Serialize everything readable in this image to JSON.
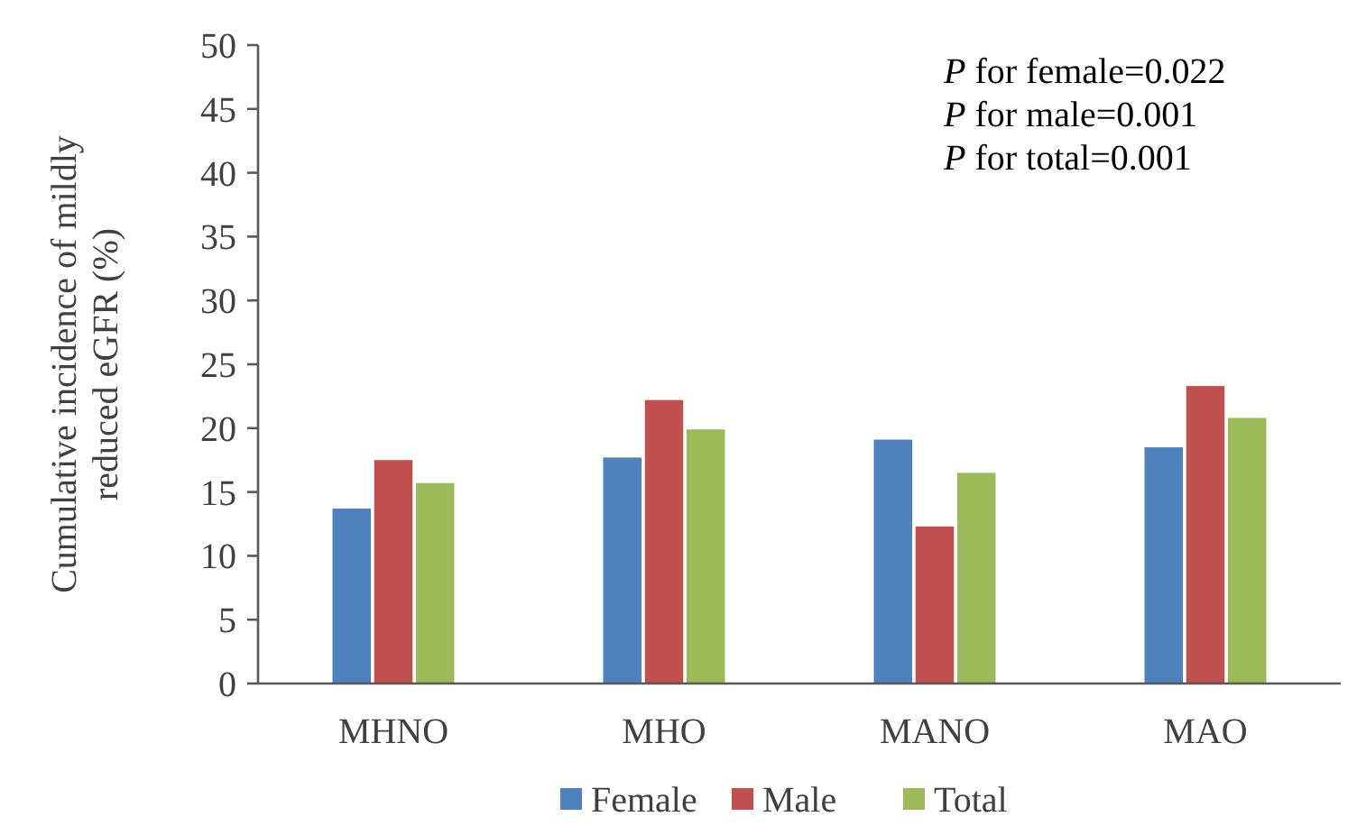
{
  "chart_data": {
    "type": "bar",
    "ylabel": "Cumulative incidence  of mildly reduced eGFR (%)",
    "categories": [
      "MHNO",
      "MHO",
      "MANO",
      "MAO"
    ],
    "series": [
      {
        "name": "Female",
        "color": "#4f81bd",
        "values": [
          13.7,
          17.7,
          19.1,
          18.5
        ]
      },
      {
        "name": "Male",
        "color": "#c0504d",
        "values": [
          17.5,
          22.2,
          12.3,
          23.3
        ]
      },
      {
        "name": "Total",
        "color": "#9bbb59",
        "values": [
          15.7,
          19.9,
          16.5,
          20.8
        ]
      }
    ],
    "ylim": [
      0,
      50
    ],
    "yticks": [
      0,
      5,
      10,
      15,
      20,
      25,
      30,
      35,
      40,
      45,
      50
    ],
    "annotations": [
      "P for female=0.022",
      "P for male=0.001",
      "P for total=0.001"
    ],
    "legend": "bottom",
    "grid": false
  }
}
